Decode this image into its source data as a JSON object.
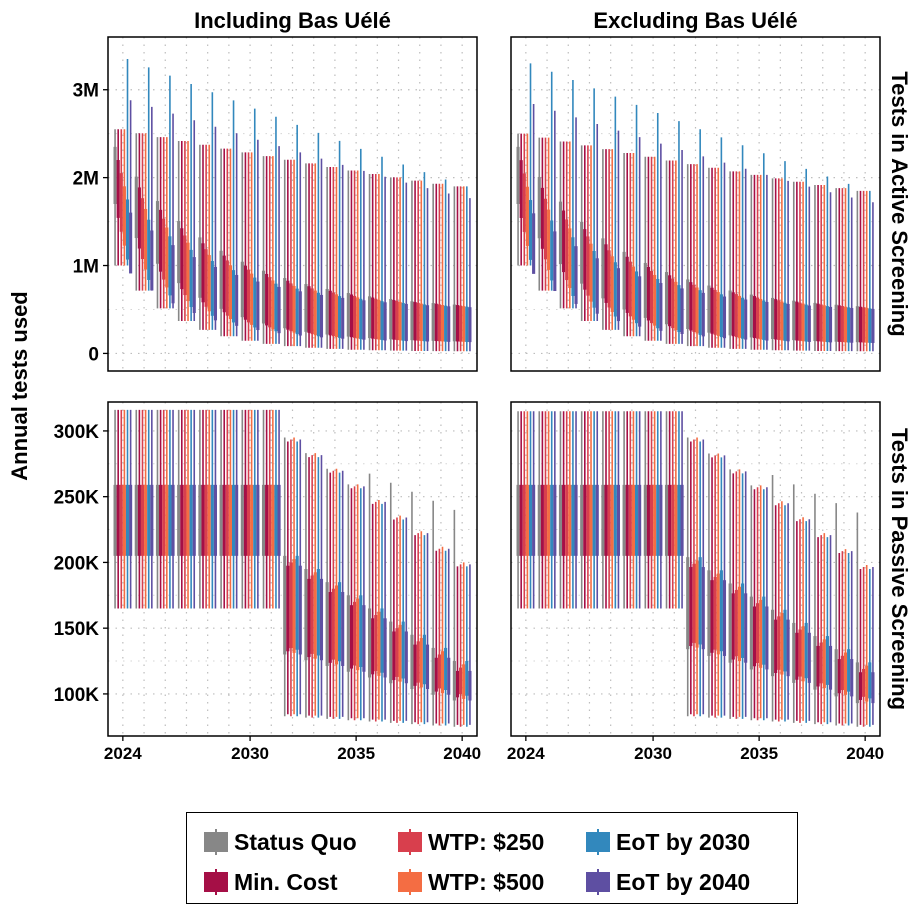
{
  "chart_data": {
    "type": "boxplot",
    "y_axis_title": "Annual tests used",
    "column_facets": [
      "Including Bas Uélé",
      "Excluding Bas Uélé"
    ],
    "row_facets": [
      "Tests in Active Screening",
      "Tests in Passive Screening"
    ],
    "x_ticks": [
      "2024",
      "2030",
      "2035",
      "2040"
    ],
    "x_range": [
      2023.3,
      2040.7
    ],
    "panels": [
      {
        "column": "Including Bas Uélé",
        "row": "Tests in Active Screening",
        "ylim": [
          -200000,
          3600000
        ],
        "y_ticks": [
          {
            "value": 0,
            "label": "0"
          },
          {
            "value": 1000000,
            "label": "1M"
          },
          {
            "value": 2000000,
            "label": "2M"
          },
          {
            "value": 3000000,
            "label": "3M"
          }
        ],
        "start": {
          "min": 1000000,
          "q1": 1700000,
          "q3": 2350000,
          "max": 2550000
        },
        "peak_max": 3350000,
        "end_max": 1900000,
        "end_q3": 480000,
        "end_q1": 120000,
        "end_min": 20000
      },
      {
        "column": "Excluding Bas Uélé",
        "row": "Tests in Active Screening",
        "ylim": [
          -200000,
          3600000
        ],
        "y_ticks": [
          {
            "value": 0,
            "label": "0"
          },
          {
            "value": 1000000,
            "label": "1M"
          },
          {
            "value": 2000000,
            "label": "2M"
          },
          {
            "value": 3000000,
            "label": "3M"
          }
        ],
        "start": {
          "min": 1000000,
          "q1": 1700000,
          "q3": 2350000,
          "max": 2500000
        },
        "peak_max": 3300000,
        "end_max": 1850000,
        "end_q3": 460000,
        "end_q1": 110000,
        "end_min": 20000
      },
      {
        "column": "Including Bas Uélé",
        "row": "Tests in Passive Screening",
        "ylim": [
          68000,
          322000
        ],
        "y_ticks": [
          {
            "value": 100000,
            "label": "100K"
          },
          {
            "value": 150000,
            "label": "150K"
          },
          {
            "value": 200000,
            "label": "200K"
          },
          {
            "value": 250000,
            "label": "250K"
          },
          {
            "value": 300000,
            "label": "300K"
          }
        ],
        "plateau_until": 2031,
        "plateau": {
          "min": 165000,
          "q1": 205000,
          "q3": 259000,
          "max": 316000
        },
        "after": {
          "max_start": 295000,
          "max_end": 200000,
          "q3_start": 205000,
          "q3_end": 125000,
          "q1_start": 130000,
          "q1_end": 95000,
          "min_start": 83000,
          "min_end": 75000
        }
      },
      {
        "column": "Excluding Bas Uélé",
        "row": "Tests in Passive Screening",
        "ylim": [
          68000,
          322000
        ],
        "y_ticks": [
          {
            "value": 100000,
            "label": "100K"
          },
          {
            "value": 150000,
            "label": "150K"
          },
          {
            "value": 200000,
            "label": "200K"
          },
          {
            "value": 250000,
            "label": "250K"
          },
          {
            "value": 300000,
            "label": "300K"
          }
        ],
        "plateau_until": 2031,
        "plateau": {
          "min": 165000,
          "q1": 205000,
          "q3": 259000,
          "max": 315000
        },
        "after": {
          "max_start": 295000,
          "max_end": 198000,
          "q3_start": 204000,
          "q3_end": 124000,
          "q1_start": 134000,
          "q1_end": 93000,
          "min_start": 83000,
          "min_end": 75000
        }
      }
    ],
    "series": [
      {
        "name": "Status Quo",
        "color": "#878787"
      },
      {
        "name": "Min. Cost",
        "color": "#a50f46"
      },
      {
        "name": "WTP: $250",
        "color": "#d83f4d"
      },
      {
        "name": "WTP: $500",
        "color": "#f46d43"
      },
      {
        "name": "EoT by 2030",
        "color": "#3288bd"
      },
      {
        "name": "EoT by 2040",
        "color": "#5e4fa2"
      }
    ],
    "legend_position": "bottom",
    "grid": true
  }
}
